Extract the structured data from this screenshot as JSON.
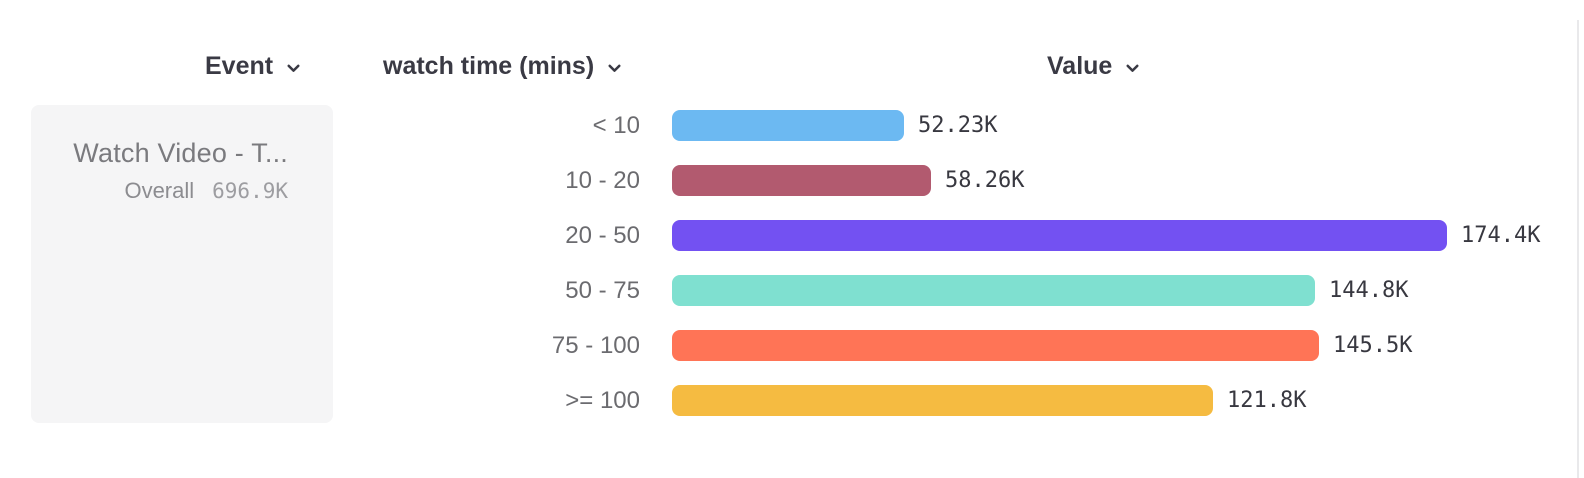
{
  "header": {
    "columns": [
      {
        "label": "Event"
      },
      {
        "label": "watch time (mins)"
      },
      {
        "label": "Value"
      }
    ]
  },
  "event_card": {
    "title": "Watch Video - T...",
    "overall_label": "Overall",
    "overall_value": "696.9K"
  },
  "chart_data": {
    "type": "bar",
    "orientation": "horizontal",
    "title": "",
    "xlabel": "Value",
    "ylabel": "watch time (mins)",
    "legend": false,
    "grid": false,
    "categories": [
      "< 10",
      "10 - 20",
      "20 - 50",
      "50 - 75",
      "75 - 100",
      ">= 100"
    ],
    "values": [
      52230,
      58260,
      174400,
      144800,
      145500,
      121800
    ],
    "value_labels": [
      "52.23K",
      "58.26K",
      "174.4K",
      "144.8K",
      "145.5K",
      "121.8K"
    ],
    "bar_colors": [
      "#6cb9f2",
      "#b25a6f",
      "#7351f2",
      "#7fe0d0",
      "#ff7456",
      "#f5bb41"
    ],
    "max_value": 174400,
    "overall_total": "696.9K"
  },
  "colors": {
    "background": "#ffffff",
    "card_background": "#f5f5f6",
    "header_text": "#3a3a44",
    "label_text": "#6b6b6f",
    "value_text": "#383840",
    "divider": "#e9e9eb"
  }
}
